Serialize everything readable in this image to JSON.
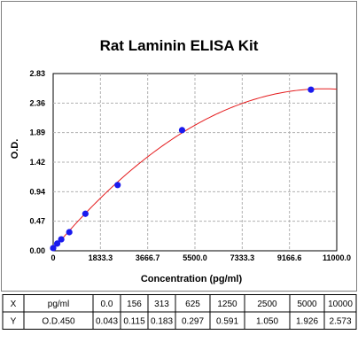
{
  "chart_data": {
    "type": "scatter",
    "title": "Rat Laminin ELISA Kit",
    "xlabel": "Concentration (pg/ml)",
    "ylabel": "O.D.",
    "xlim": [
      0,
      11000
    ],
    "ylim": [
      0,
      2.83
    ],
    "x_ticks": [
      "0",
      "1833.3",
      "3666.7",
      "5500.0",
      "7333.3",
      "9166.6",
      "11000.0"
    ],
    "y_ticks": [
      "0.00",
      "0.47",
      "0.94",
      "1.42",
      "1.89",
      "2.36",
      "2.83"
    ],
    "grid": true,
    "series": [
      {
        "x": [
          0,
          156,
          313,
          625,
          1250,
          2500,
          5000,
          10000
        ],
        "y": [
          0.043,
          0.115,
          0.183,
          0.297,
          0.591,
          1.05,
          1.926,
          2.573
        ]
      }
    ],
    "fit_curve": "quadratic",
    "colors": {
      "points": "#1a1aee",
      "curve": "#e41a1c",
      "grid": "#b0b0b0",
      "frame": "#808080"
    }
  },
  "table": {
    "rows": [
      [
        "X",
        "pg/ml",
        "0.0",
        "156",
        "313",
        "625",
        "1250",
        "2500",
        "5000",
        "10000"
      ],
      [
        "Y",
        "O.D.450",
        "0.043",
        "0.115",
        "0.183",
        "0.297",
        "0.591",
        "1.050",
        "1.926",
        "2.573"
      ]
    ]
  }
}
